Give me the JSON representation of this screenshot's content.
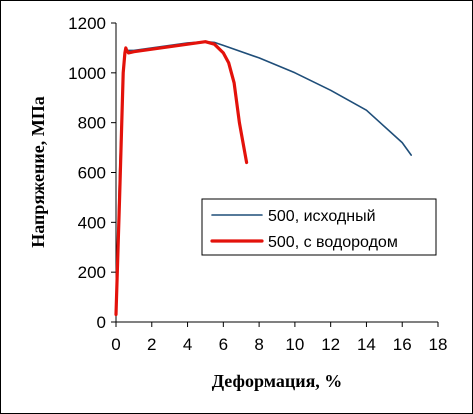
{
  "chart_data": {
    "type": "line",
    "xlabel": "Деформация, %",
    "ylabel": "Напряжение, МПа",
    "xlim": [
      0,
      18
    ],
    "ylim": [
      0,
      1200
    ],
    "xticks": [
      0,
      2,
      4,
      6,
      8,
      10,
      12,
      14,
      16,
      18
    ],
    "yticks": [
      0,
      200,
      400,
      600,
      800,
      1000,
      1200
    ],
    "grid": false,
    "legend_position": "right",
    "series": [
      {
        "name": "500, исходный",
        "color": "#1f4e79",
        "x": [
          0.0,
          0.2,
          0.4,
          0.5,
          0.6,
          1.0,
          2.0,
          3.0,
          4.0,
          5.0,
          5.5,
          6.0,
          8.0,
          10.0,
          12.0,
          14.0,
          16.0,
          16.5
        ],
        "y": [
          40,
          600,
          1000,
          1080,
          1090,
          1090,
          1100,
          1110,
          1120,
          1125,
          1122,
          1110,
          1060,
          1000,
          930,
          850,
          720,
          670
        ]
      },
      {
        "name": "500, с водородом",
        "color": "#e3120b",
        "x": [
          0.0,
          0.2,
          0.4,
          0.5,
          0.55,
          0.6,
          0.7,
          1.0,
          2.0,
          3.0,
          4.0,
          5.0,
          5.5,
          6.0,
          6.3,
          6.6,
          6.9,
          7.1,
          7.3
        ],
        "y": [
          30,
          500,
          1000,
          1080,
          1100,
          1090,
          1080,
          1085,
          1095,
          1105,
          1115,
          1125,
          1115,
          1080,
          1040,
          960,
          800,
          720,
          640
        ]
      }
    ]
  }
}
